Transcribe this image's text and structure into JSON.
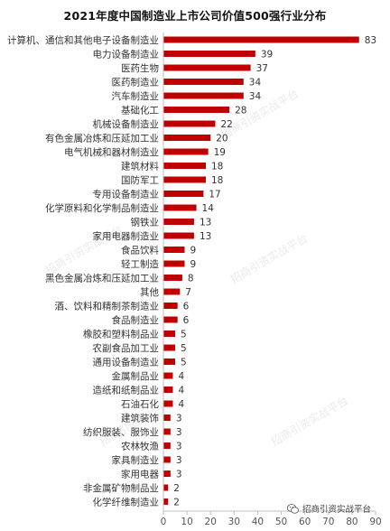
{
  "chart_data": {
    "type": "bar",
    "orientation": "horizontal",
    "title": "2021年度中国制造业上市公司价值500强行业分布",
    "xlabel": "",
    "ylabel": "",
    "xlim": [
      0,
      90
    ],
    "xticks": [
      0,
      10,
      20,
      30,
      40,
      50,
      60,
      70,
      80,
      90
    ],
    "grid": false,
    "bar_color": "#c00000",
    "categories": [
      "计算机、通信和其他电子设备制造业",
      "电力设备制造业",
      "医药生物",
      "医药制造业",
      "汽车制造业",
      "基础化工",
      "机械设备制造业",
      "有色金属冶炼和压延加工业",
      "电气机械和器材制造业",
      "建筑材料",
      "国防军工",
      "专用设备制造业",
      "化学原料和化学制品制造业",
      "钢铁业",
      "家用电器制造业",
      "食品饮料",
      "轻工制造",
      "黑色金属冶炼和压延加工业",
      "其他",
      "酒、饮料和精制茶制造业",
      "食品制造业",
      "橡胶和塑料制品业",
      "农副食品加工业",
      "通用设备制造业",
      "金属制品业",
      "造纸和纸制品业",
      "石油石化",
      "建筑装饰",
      "纺织服装、服饰业",
      "农林牧渔",
      "家具制造业",
      "家用电器",
      "非金属矿物制品业",
      "化学纤维制造业"
    ],
    "values": [
      83,
      39,
      37,
      34,
      34,
      28,
      22,
      20,
      19,
      18,
      18,
      17,
      14,
      13,
      13,
      9,
      9,
      8,
      7,
      6,
      6,
      5,
      5,
      5,
      4,
      4,
      4,
      3,
      3,
      3,
      3,
      3,
      2,
      2
    ]
  },
  "watermark_text": "招商引资实战平台",
  "brand": {
    "icon": "wechat-icon",
    "label": "招商引资实战平台"
  }
}
